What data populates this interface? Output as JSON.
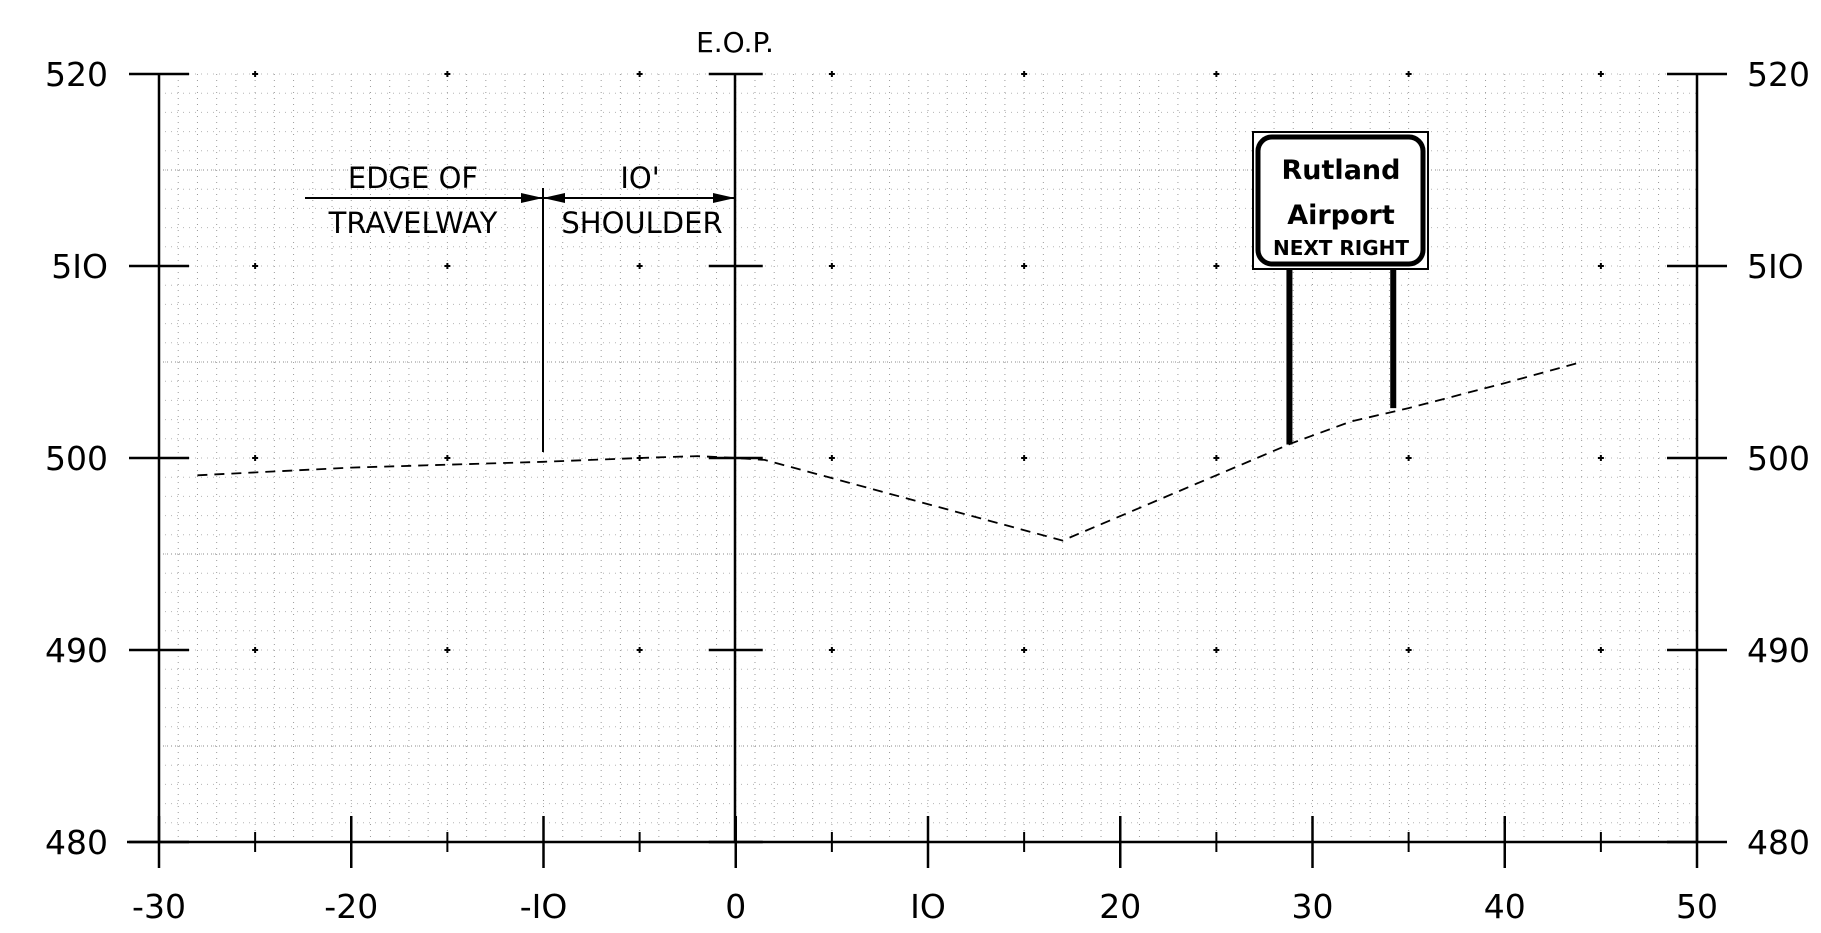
{
  "chart_data": {
    "type": "line",
    "title": "",
    "xlabel": "",
    "ylabel": "",
    "xlim": [
      -30,
      50
    ],
    "ylim": [
      480,
      520
    ],
    "x_major_ticks": [
      -30,
      -20,
      -10,
      0,
      10,
      20,
      30,
      40,
      50
    ],
    "x_tick_labels": [
      "-30",
      "-20",
      "-IO",
      "0",
      "IO",
      "20",
      "30",
      "40",
      "50"
    ],
    "y_major_ticks": [
      480,
      490,
      500,
      510,
      520
    ],
    "y_tick_labels": [
      "480",
      "490",
      "500",
      "5IO",
      "520"
    ],
    "grid": true,
    "series": [
      {
        "style": "dashed",
        "x": [
          -28,
          -20,
          -10,
          -5,
          -2,
          0,
          1.5,
          17,
          29,
          32,
          35,
          40,
          44
        ],
        "y": [
          499.1,
          499.5,
          499.8,
          500.0,
          500.1,
          500.0,
          499.9,
          495.7,
          500.8,
          501.9,
          502.6,
          503.9,
          505.0
        ]
      }
    ],
    "sign_posts": [
      {
        "x": 28.8,
        "y_base": 500.7,
        "y_top": 510
      },
      {
        "x": 34.2,
        "y_base": 502.6,
        "y_top": 510
      }
    ]
  },
  "annotations": {
    "eop": {
      "text": "E.O.P.",
      "x": 0
    },
    "edge_of_travelway": {
      "line1": "EDGE OF",
      "line2": "TRAVELWAY"
    },
    "shoulder": {
      "line1": "IO'",
      "line2": "SHOULDER"
    }
  },
  "sign": {
    "line1": "Rutland",
    "line2": "Airport",
    "line3": "NEXT RIGHT"
  }
}
